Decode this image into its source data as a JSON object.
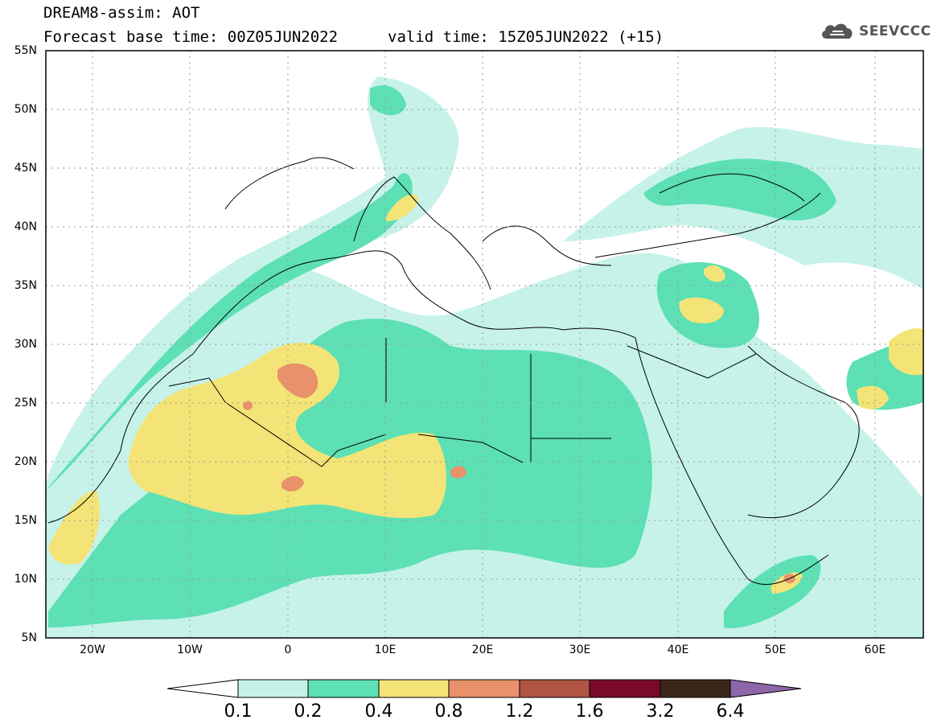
{
  "header": {
    "title_line1": "DREAM8-assim: AOT",
    "forecast_base": "Forecast base time: 00Z05JUN2022",
    "valid_time": "valid time: 15Z05JUN2022 (+15)",
    "logo_text": "SEEVCCC"
  },
  "map": {
    "variable": "AOT",
    "lon_range": [
      -25,
      65
    ],
    "lat_range": [
      5,
      55
    ],
    "y_ticks": [
      "55N",
      "50N",
      "45N",
      "40N",
      "35N",
      "30N",
      "25N",
      "20N",
      "15N",
      "10N",
      "5N"
    ],
    "x_ticks": [
      "20W",
      "10W",
      "0",
      "10E",
      "20E",
      "30E",
      "40E",
      "50E",
      "60E"
    ]
  },
  "colorbar": {
    "levels": [
      "0.1",
      "0.2",
      "0.4",
      "0.8",
      "1.2",
      "1.6",
      "3.2",
      "6.4"
    ],
    "colors": [
      "#c6f2ea",
      "#5ce0b4",
      "#f4e477",
      "#e8916a",
      "#b05543",
      "#7a0a2a",
      "#3b2718",
      "#8e67a8"
    ]
  },
  "colors": {
    "background": "#ffffff",
    "border": "#000000",
    "grid": "#9a9a9a"
  }
}
